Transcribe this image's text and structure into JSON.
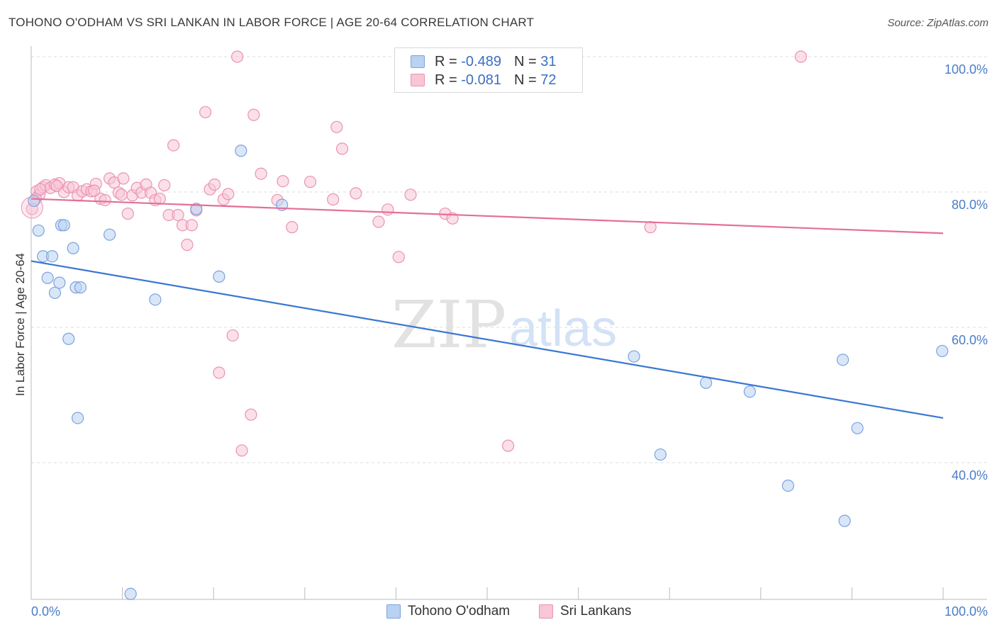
{
  "title": "TOHONO O'ODHAM VS SRI LANKAN IN LABOR FORCE | AGE 20-64 CORRELATION CHART",
  "source": "Source: ZipAtlas.com",
  "watermark": {
    "zip": "ZIP",
    "atlas": "atlas"
  },
  "colors": {
    "blue_fill": "#b9d1f2",
    "blue_stroke": "#7aa3de",
    "blue_line": "#3a77d1",
    "pink_fill": "#f8c6d6",
    "pink_stroke": "#ea93b1",
    "pink_line": "#e46f98",
    "grid": "#dddddd",
    "tick_text": "#4a7cc9"
  },
  "legend": {
    "rows": [
      {
        "r_label": "R = ",
        "r_value": "-0.489",
        "n_label": "N = ",
        "n_value": "31"
      },
      {
        "r_label": "R = ",
        "r_value": "-0.081",
        "n_label": "N = ",
        "n_value": "72"
      }
    ]
  },
  "bottom_legend": [
    "Tohono O'odham",
    "Sri Lankans"
  ],
  "chart_data": {
    "type": "scatter",
    "ylabel": "In Labor Force | Age 20-64",
    "x_tick_labels": [
      "0.0%",
      "100.0%"
    ],
    "y_tick_labels": [
      "100.0%",
      "80.0%",
      "60.0%",
      "40.0%"
    ],
    "y_ticks": [
      100,
      80,
      60,
      40
    ],
    "xlim": [
      0,
      100
    ],
    "ylim": [
      20,
      102
    ],
    "grid": true,
    "series": [
      {
        "name": "Tohono O'odham",
        "trend": {
          "x": [
            0,
            100
          ],
          "y": [
            69.8,
            46.6
          ]
        },
        "points": [
          [
            0.3,
            78.7
          ],
          [
            0.8,
            74.3
          ],
          [
            1.3,
            70.5
          ],
          [
            1.8,
            67.3
          ],
          [
            2.3,
            70.5
          ],
          [
            2.6,
            65.1
          ],
          [
            3.1,
            66.6
          ],
          [
            3.3,
            75.1
          ],
          [
            3.6,
            75.1
          ],
          [
            4.1,
            58.3
          ],
          [
            4.9,
            65.9
          ],
          [
            5.4,
            65.9
          ],
          [
            4.6,
            71.7
          ],
          [
            5.1,
            46.6
          ],
          [
            8.6,
            73.7
          ],
          [
            10.9,
            20.6
          ],
          [
            13.6,
            64.1
          ],
          [
            18.1,
            77.5
          ],
          [
            20.6,
            67.5
          ],
          [
            23.0,
            86.1
          ],
          [
            27.5,
            78.1
          ],
          [
            47.9,
            100.0
          ],
          [
            66.1,
            55.7
          ],
          [
            69.0,
            41.2
          ],
          [
            74.0,
            51.8
          ],
          [
            78.8,
            50.5
          ],
          [
            83.0,
            36.6
          ],
          [
            89.0,
            55.2
          ],
          [
            89.2,
            31.4
          ],
          [
            90.6,
            45.1
          ],
          [
            99.9,
            56.5
          ]
        ]
      },
      {
        "name": "Sri Lankans",
        "trend": {
          "x": [
            0,
            100
          ],
          "y": [
            79.0,
            73.9
          ]
        },
        "points": [
          [
            0.1,
            77.5
          ],
          [
            0.6,
            80.1
          ],
          [
            0.9,
            79.6
          ],
          [
            1.3,
            80.7
          ],
          [
            1.6,
            81.0
          ],
          [
            2.1,
            80.6
          ],
          [
            2.6,
            81.1
          ],
          [
            3.1,
            81.3
          ],
          [
            3.6,
            80.0
          ],
          [
            4.1,
            80.7
          ],
          [
            4.6,
            80.7
          ],
          [
            5.1,
            79.5
          ],
          [
            5.6,
            80.1
          ],
          [
            6.1,
            80.4
          ],
          [
            6.6,
            80.1
          ],
          [
            7.1,
            81.2
          ],
          [
            7.6,
            79.0
          ],
          [
            8.1,
            78.8
          ],
          [
            8.6,
            82.0
          ],
          [
            9.1,
            81.4
          ],
          [
            9.6,
            79.9
          ],
          [
            10.1,
            82.0
          ],
          [
            10.6,
            76.8
          ],
          [
            11.1,
            79.5
          ],
          [
            11.6,
            80.6
          ],
          [
            12.1,
            79.9
          ],
          [
            12.6,
            81.1
          ],
          [
            13.1,
            79.9
          ],
          [
            13.6,
            78.8
          ],
          [
            14.1,
            79.0
          ],
          [
            14.6,
            81.0
          ],
          [
            15.1,
            76.6
          ],
          [
            15.6,
            86.9
          ],
          [
            16.1,
            76.6
          ],
          [
            16.6,
            75.1
          ],
          [
            17.1,
            72.2
          ],
          [
            17.6,
            75.1
          ],
          [
            18.1,
            77.3
          ],
          [
            19.1,
            91.8
          ],
          [
            19.6,
            80.4
          ],
          [
            20.1,
            81.1
          ],
          [
            20.6,
            53.3
          ],
          [
            21.1,
            78.9
          ],
          [
            21.6,
            79.7
          ],
          [
            22.1,
            58.8
          ],
          [
            22.6,
            100.0
          ],
          [
            23.1,
            41.8
          ],
          [
            24.1,
            47.1
          ],
          [
            24.4,
            91.4
          ],
          [
            25.2,
            82.7
          ],
          [
            27.0,
            78.8
          ],
          [
            27.6,
            81.6
          ],
          [
            28.6,
            74.8
          ],
          [
            30.6,
            81.5
          ],
          [
            33.1,
            78.9
          ],
          [
            33.5,
            89.6
          ],
          [
            34.1,
            86.4
          ],
          [
            35.6,
            79.8
          ],
          [
            38.1,
            75.6
          ],
          [
            39.1,
            77.4
          ],
          [
            40.3,
            70.4
          ],
          [
            41.6,
            79.6
          ],
          [
            45.4,
            76.8
          ],
          [
            46.2,
            76.1
          ],
          [
            52.3,
            42.5
          ],
          [
            67.9,
            74.8
          ],
          [
            84.4,
            100.0
          ],
          [
            0.5,
            79.0
          ],
          [
            1.0,
            80.4
          ],
          [
            2.8,
            80.9
          ],
          [
            6.9,
            80.2
          ],
          [
            9.9,
            79.6
          ]
        ]
      }
    ]
  }
}
